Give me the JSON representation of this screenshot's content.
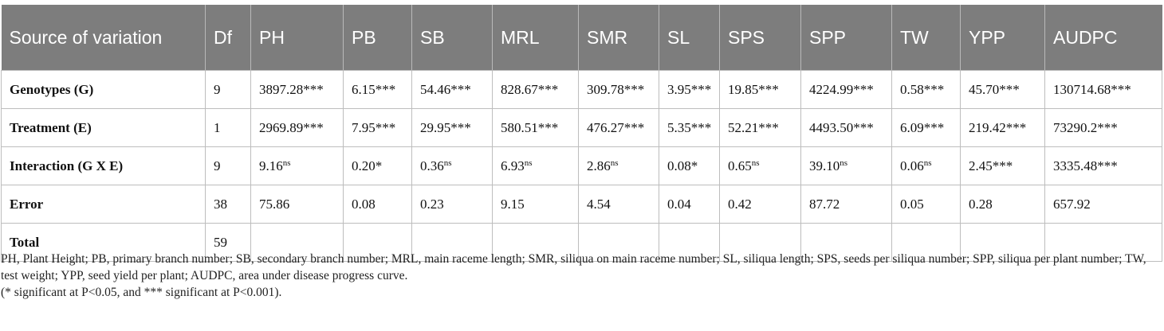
{
  "headers": [
    "Source of variation",
    "Df",
    "PH",
    "PB",
    "SB",
    "MRL",
    "SMR",
    "SL",
    "SPS",
    "SPP",
    "TW",
    "YPP",
    "AUDPC"
  ],
  "rows": [
    {
      "source": "Genotypes (G)",
      "df": "9",
      "cells": [
        {
          "v": "3897.28***",
          "s": ""
        },
        {
          "v": "6.15***",
          "s": ""
        },
        {
          "v": "54.46***",
          "s": ""
        },
        {
          "v": "828.67***",
          "s": ""
        },
        {
          "v": "309.78***",
          "s": ""
        },
        {
          "v": "3.95***",
          "s": ""
        },
        {
          "v": "19.85***",
          "s": ""
        },
        {
          "v": "4224.99***",
          "s": ""
        },
        {
          "v": "0.58***",
          "s": ""
        },
        {
          "v": "45.70***",
          "s": ""
        },
        {
          "v": "130714.68***",
          "s": ""
        }
      ]
    },
    {
      "source": "Treatment (E)",
      "df": "1",
      "cells": [
        {
          "v": "2969.89***",
          "s": ""
        },
        {
          "v": "7.95***",
          "s": ""
        },
        {
          "v": "29.95***",
          "s": ""
        },
        {
          "v": "580.51***",
          "s": ""
        },
        {
          "v": "476.27***",
          "s": ""
        },
        {
          "v": "5.35***",
          "s": ""
        },
        {
          "v": "52.21***",
          "s": ""
        },
        {
          "v": "4493.50***",
          "s": ""
        },
        {
          "v": "6.09***",
          "s": ""
        },
        {
          "v": "219.42***",
          "s": ""
        },
        {
          "v": "73290.2***",
          "s": ""
        }
      ]
    },
    {
      "source": "Interaction (G X E)",
      "df": "9",
      "cells": [
        {
          "v": "9.16",
          "s": "ns"
        },
        {
          "v": "0.20*",
          "s": ""
        },
        {
          "v": "0.36",
          "s": "ns"
        },
        {
          "v": "6.93",
          "s": "ns"
        },
        {
          "v": "2.86",
          "s": "ns"
        },
        {
          "v": "0.08*",
          "s": ""
        },
        {
          "v": "0.65",
          "s": "ns"
        },
        {
          "v": "39.10",
          "s": "ns"
        },
        {
          "v": "0.06",
          "s": "ns"
        },
        {
          "v": "2.45***",
          "s": ""
        },
        {
          "v": "3335.48***",
          "s": ""
        }
      ]
    },
    {
      "source": "Error",
      "df": "38",
      "cells": [
        {
          "v": "75.86",
          "s": ""
        },
        {
          "v": "0.08",
          "s": ""
        },
        {
          "v": "0.23",
          "s": ""
        },
        {
          "v": "9.15",
          "s": ""
        },
        {
          "v": "4.54",
          "s": ""
        },
        {
          "v": "0.04",
          "s": ""
        },
        {
          "v": "0.42",
          "s": ""
        },
        {
          "v": "87.72",
          "s": ""
        },
        {
          "v": "0.05",
          "s": ""
        },
        {
          "v": "0.28",
          "s": ""
        },
        {
          "v": "657.92",
          "s": ""
        }
      ]
    },
    {
      "source": "Total",
      "df": "59",
      "cells": [
        {
          "v": "",
          "s": ""
        },
        {
          "v": "",
          "s": ""
        },
        {
          "v": "",
          "s": ""
        },
        {
          "v": "",
          "s": ""
        },
        {
          "v": "",
          "s": ""
        },
        {
          "v": "",
          "s": ""
        },
        {
          "v": "",
          "s": ""
        },
        {
          "v": "",
          "s": ""
        },
        {
          "v": "",
          "s": ""
        },
        {
          "v": "",
          "s": ""
        },
        {
          "v": "",
          "s": ""
        }
      ]
    }
  ],
  "notes": {
    "abbreviations": "PH, Plant Height; PB, primary branch number; SB, secondary branch number; MRL, main raceme length; SMR, siliqua on main raceme number; SL, siliqua length; SPS, seeds per siliqua number; SPP, siliqua per plant number; TW, test weight; YPP, seed yield per plant; AUDPC, area under disease progress curve.",
    "significance": "(* significant at P<0.05, and *** significant at P<0.001)."
  },
  "colors": {
    "header_bg": "#7d7d7d",
    "header_text": "#ffffff",
    "grid": "#bdbdbd"
  }
}
